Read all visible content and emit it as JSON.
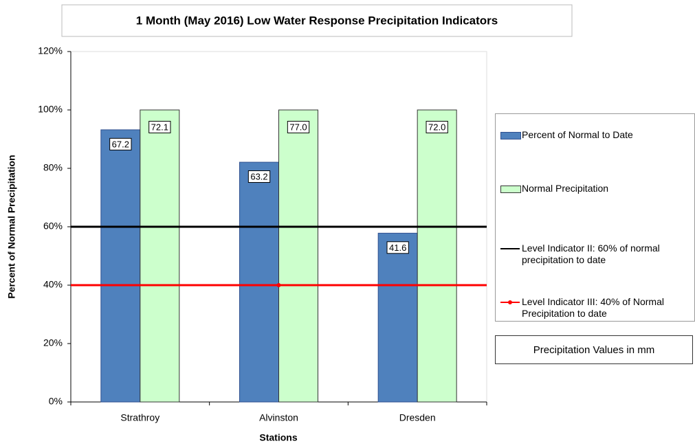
{
  "chart_data": {
    "type": "bar",
    "title": "1 Month (May 2016) Low Water Response Precipitation Indicators",
    "x_label": "Stations",
    "y_label": "Percent of Normal Precipitation",
    "categories": [
      "Strathroy",
      "Alvinston",
      "Dresden"
    ],
    "series": [
      {
        "name": "Percent of Normal to Date",
        "color": "#4f81bd",
        "edge": "#2f4f8f",
        "values": [
          93.2,
          82.1,
          57.8
        ],
        "mm_labels": [
          "67.2",
          "63.2",
          "41.6"
        ]
      },
      {
        "name": "Normal Precipitation",
        "color": "#ccffcc",
        "edge": "#333333",
        "values": [
          100,
          100,
          100
        ],
        "mm_labels": [
          "72.1",
          "77.0",
          "72.0"
        ]
      }
    ],
    "reference_lines": [
      {
        "name": "Level Indicator II: 60% of normal precipitation to date",
        "color": "#000000",
        "value": 60,
        "marker": false
      },
      {
        "name": "Level Indicator III: 40% of Normal Precipitation to date",
        "color": "#ff0000",
        "value": 40,
        "marker": true
      }
    ],
    "note": "Precipitation Values in mm",
    "ylim": [
      0,
      120
    ],
    "yticks": [
      {
        "value": 0,
        "label": "0%"
      },
      {
        "value": 20,
        "label": "20%"
      },
      {
        "value": 40,
        "label": "40%"
      },
      {
        "value": 60,
        "label": "60%"
      },
      {
        "value": 80,
        "label": "80%"
      },
      {
        "value": 100,
        "label": "100%"
      },
      {
        "value": 120,
        "label": "120%"
      }
    ],
    "legend": "right"
  }
}
